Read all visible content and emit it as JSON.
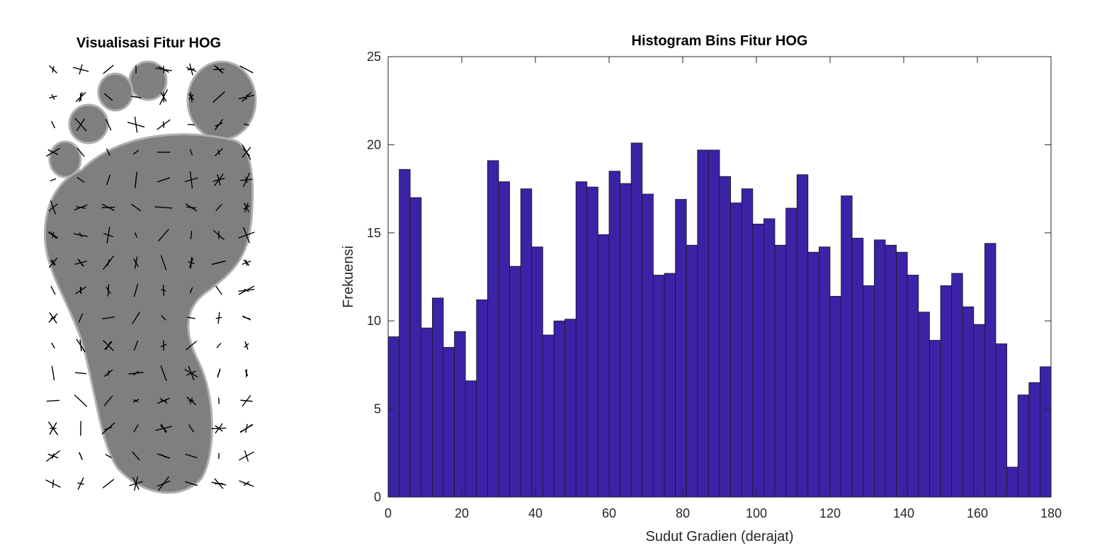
{
  "figure": {
    "left_title": "Visualisasi Fitur HOG",
    "right_title": "Histogram Bins Fitur HOG"
  },
  "colors": {
    "bar_fill": "#3B22A6",
    "bar_edge": "#1a1a1a",
    "foot_fill": "#808080",
    "glyph": "#000000"
  },
  "chart_data": [
    {
      "type": "image",
      "title": "Visualisasi Fitur HOG"
    },
    {
      "type": "bar",
      "title": "Histogram Bins Fitur HOG",
      "xlabel": "Sudut Gradien (derajat)",
      "ylabel": "Frekuensi",
      "xlim": [
        0,
        180
      ],
      "ylim": [
        0,
        25
      ],
      "xticks": [
        0,
        20,
        40,
        60,
        80,
        100,
        120,
        140,
        160,
        180
      ],
      "yticks": [
        0,
        5,
        10,
        15,
        20,
        25
      ],
      "bin_width": 3,
      "values": [
        9.1,
        18.6,
        17.0,
        9.6,
        11.3,
        8.5,
        9.4,
        6.6,
        11.2,
        19.1,
        17.9,
        13.1,
        17.5,
        14.2,
        9.2,
        10.0,
        10.1,
        17.9,
        17.6,
        14.9,
        18.5,
        17.8,
        20.1,
        17.2,
        12.6,
        12.7,
        16.9,
        14.3,
        19.7,
        19.7,
        18.2,
        16.7,
        17.5,
        15.5,
        15.8,
        14.3,
        16.4,
        18.3,
        13.9,
        14.2,
        11.4,
        17.1,
        14.7,
        12.0,
        14.6,
        14.3,
        13.9,
        12.6,
        10.5,
        8.9,
        12.0,
        12.7,
        10.8,
        9.8,
        14.4,
        8.7,
        1.7,
        5.8,
        6.5,
        7.4
      ]
    }
  ]
}
